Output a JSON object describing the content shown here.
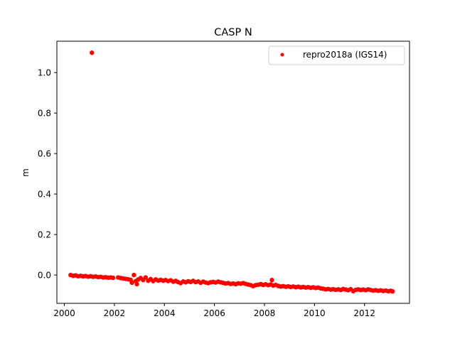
{
  "chart_data": {
    "type": "scatter",
    "title": "CASP N",
    "xlabel": "",
    "ylabel": "m",
    "xlim": [
      1999.7,
      2013.8
    ],
    "ylim": [
      -0.14,
      1.155
    ],
    "xticks": [
      2000,
      2002,
      2004,
      2006,
      2008,
      2010,
      2012
    ],
    "yticks": [
      0.0,
      0.2,
      0.4,
      0.6,
      0.8,
      1.0
    ],
    "ytick_labels": [
      "0.0",
      "0.2",
      "0.4",
      "0.6",
      "0.8",
      "1.0"
    ],
    "grid": false,
    "legend_position": "top-right",
    "series": [
      {
        "name": "repro2018a (IGS14)",
        "color": "#ff0000",
        "marker": "dot",
        "points": [
          [
            2001.1,
            1.098
          ],
          [
            2000.25,
            0.0
          ],
          [
            2000.35,
            -0.004
          ],
          [
            2000.45,
            -0.002
          ],
          [
            2000.55,
            -0.006
          ],
          [
            2000.65,
            -0.004
          ],
          [
            2000.75,
            -0.007
          ],
          [
            2000.85,
            -0.005
          ],
          [
            2000.95,
            -0.008
          ],
          [
            2001.05,
            -0.006
          ],
          [
            2001.15,
            -0.009
          ],
          [
            2001.25,
            -0.007
          ],
          [
            2001.35,
            -0.01
          ],
          [
            2001.45,
            -0.009
          ],
          [
            2001.55,
            -0.012
          ],
          [
            2001.65,
            -0.011
          ],
          [
            2001.75,
            -0.013
          ],
          [
            2001.85,
            -0.012
          ],
          [
            2001.95,
            -0.014
          ],
          [
            2002.15,
            -0.012
          ],
          [
            2002.25,
            -0.015
          ],
          [
            2002.35,
            -0.017
          ],
          [
            2002.45,
            -0.019
          ],
          [
            2002.55,
            -0.021
          ],
          [
            2002.65,
            -0.024
          ],
          [
            2002.7,
            -0.038
          ],
          [
            2002.78,
            0.0
          ],
          [
            2002.85,
            -0.03
          ],
          [
            2002.9,
            -0.045
          ],
          [
            2002.95,
            -0.022
          ],
          [
            2003.05,
            -0.015
          ],
          [
            2003.15,
            -0.025
          ],
          [
            2003.25,
            -0.012
          ],
          [
            2003.35,
            -0.028
          ],
          [
            2003.45,
            -0.02
          ],
          [
            2003.55,
            -0.03
          ],
          [
            2003.65,
            -0.022
          ],
          [
            2003.75,
            -0.027
          ],
          [
            2003.85,
            -0.024
          ],
          [
            2003.95,
            -0.028
          ],
          [
            2004.05,
            -0.025
          ],
          [
            2004.15,
            -0.03
          ],
          [
            2004.25,
            -0.026
          ],
          [
            2004.35,
            -0.033
          ],
          [
            2004.45,
            -0.029
          ],
          [
            2004.55,
            -0.035
          ],
          [
            2004.65,
            -0.04
          ],
          [
            2004.75,
            -0.032
          ],
          [
            2004.85,
            -0.036
          ],
          [
            2004.95,
            -0.031
          ],
          [
            2005.05,
            -0.034
          ],
          [
            2005.15,
            -0.029
          ],
          [
            2005.25,
            -0.035
          ],
          [
            2005.35,
            -0.032
          ],
          [
            2005.45,
            -0.038
          ],
          [
            2005.55,
            -0.033
          ],
          [
            2005.65,
            -0.037
          ],
          [
            2005.75,
            -0.04
          ],
          [
            2005.85,
            -0.036
          ],
          [
            2005.95,
            -0.034
          ],
          [
            2006.05,
            -0.037
          ],
          [
            2006.15,
            -0.033
          ],
          [
            2006.25,
            -0.036
          ],
          [
            2006.35,
            -0.039
          ],
          [
            2006.45,
            -0.042
          ],
          [
            2006.55,
            -0.04
          ],
          [
            2006.65,
            -0.044
          ],
          [
            2006.75,
            -0.042
          ],
          [
            2006.85,
            -0.045
          ],
          [
            2006.95,
            -0.041
          ],
          [
            2007.05,
            -0.043
          ],
          [
            2007.15,
            -0.04
          ],
          [
            2007.25,
            -0.044
          ],
          [
            2007.35,
            -0.047
          ],
          [
            2007.45,
            -0.05
          ],
          [
            2007.55,
            -0.055
          ],
          [
            2007.65,
            -0.05
          ],
          [
            2007.75,
            -0.048
          ],
          [
            2007.85,
            -0.045
          ],
          [
            2007.95,
            -0.049
          ],
          [
            2008.05,
            -0.046
          ],
          [
            2008.15,
            -0.05
          ],
          [
            2008.25,
            -0.047
          ],
          [
            2008.3,
            -0.025
          ],
          [
            2008.35,
            -0.052
          ],
          [
            2008.45,
            -0.049
          ],
          [
            2008.55,
            -0.054
          ],
          [
            2008.65,
            -0.057
          ],
          [
            2008.75,
            -0.055
          ],
          [
            2008.85,
            -0.058
          ],
          [
            2008.95,
            -0.056
          ],
          [
            2009.05,
            -0.059
          ],
          [
            2009.15,
            -0.057
          ],
          [
            2009.25,
            -0.06
          ],
          [
            2009.35,
            -0.058
          ],
          [
            2009.45,
            -0.061
          ],
          [
            2009.55,
            -0.059
          ],
          [
            2009.65,
            -0.062
          ],
          [
            2009.75,
            -0.06
          ],
          [
            2009.85,
            -0.063
          ],
          [
            2009.95,
            -0.061
          ],
          [
            2010.05,
            -0.064
          ],
          [
            2010.15,
            -0.062
          ],
          [
            2010.25,
            -0.066
          ],
          [
            2010.35,
            -0.068
          ],
          [
            2010.45,
            -0.071
          ],
          [
            2010.55,
            -0.069
          ],
          [
            2010.65,
            -0.072
          ],
          [
            2010.75,
            -0.07
          ],
          [
            2010.85,
            -0.073
          ],
          [
            2010.95,
            -0.071
          ],
          [
            2011.05,
            -0.074
          ],
          [
            2011.15,
            -0.069
          ],
          [
            2011.25,
            -0.072
          ],
          [
            2011.35,
            -0.075
          ],
          [
            2011.45,
            -0.07
          ],
          [
            2011.55,
            -0.08
          ],
          [
            2011.65,
            -0.073
          ],
          [
            2011.75,
            -0.071
          ],
          [
            2011.85,
            -0.074
          ],
          [
            2011.95,
            -0.072
          ],
          [
            2012.05,
            -0.075
          ],
          [
            2012.15,
            -0.071
          ],
          [
            2012.25,
            -0.074
          ],
          [
            2012.35,
            -0.077
          ],
          [
            2012.45,
            -0.075
          ],
          [
            2012.55,
            -0.078
          ],
          [
            2012.65,
            -0.076
          ],
          [
            2012.75,
            -0.079
          ],
          [
            2012.85,
            -0.077
          ],
          [
            2012.95,
            -0.08
          ],
          [
            2013.05,
            -0.078
          ],
          [
            2013.12,
            -0.081
          ]
        ]
      }
    ]
  }
}
